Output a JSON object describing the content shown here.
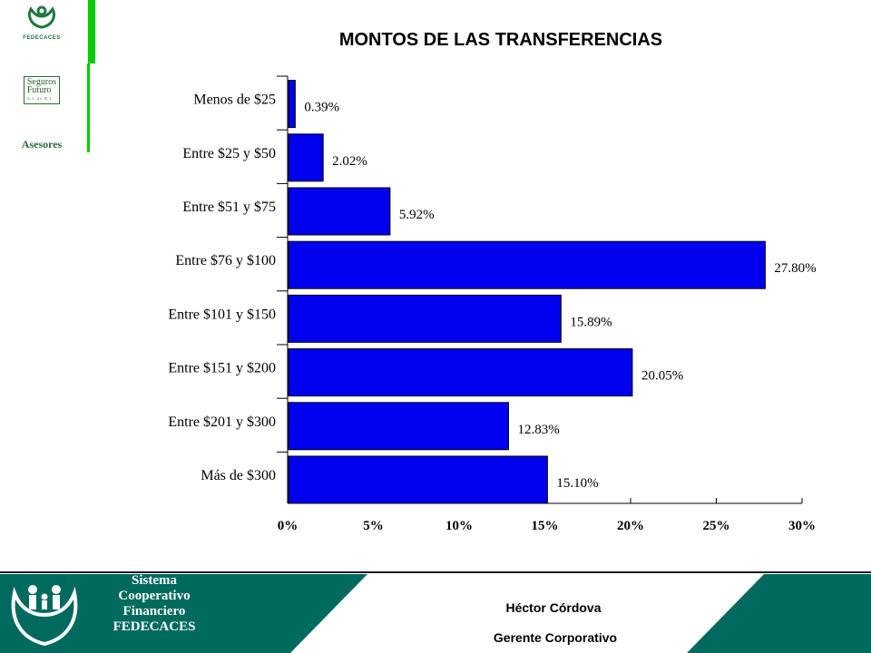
{
  "header": {
    "logo_fedecaces_text": "FEDECACES",
    "logo_seguros_line1": "Seguros",
    "logo_seguros_line2": "Futuro",
    "logo_seguros_sub": "A C de R L",
    "logo_asesores_text": "Asesores",
    "accent_green": "#00cc00"
  },
  "chart_data": {
    "type": "bar",
    "orientation": "horizontal",
    "title": "MONTOS DE LAS TRANSFERENCIAS",
    "categories": [
      "Menos de $25",
      "Entre $25 y $50",
      "Entre $51 y $75",
      "Entre $76 y $100",
      "Entre $101 y $150",
      "Entre $151 y $200",
      "Entre $201 y $300",
      "Más de $300"
    ],
    "values": [
      0.39,
      2.02,
      5.92,
      27.8,
      15.89,
      20.05,
      12.83,
      15.1
    ],
    "value_labels": [
      "0.39%",
      "2.02%",
      "5.92%",
      "27.80%",
      "15.89%",
      "20.05%",
      "12.83%",
      "15.10%"
    ],
    "xticks": [
      "0%",
      "5%",
      "10%",
      "15%",
      "20%",
      "25%",
      "30%"
    ],
    "xlim": [
      0,
      30
    ],
    "xlabel": "",
    "ylabel": "",
    "bar_color": "#0000ee",
    "grid": false,
    "legend": "none"
  },
  "footer": {
    "org_name": "Sistema Cooperativo Financiero FEDECACES",
    "person": "Héctor Córdova",
    "role": "Gerente Corporativo",
    "teal_color": "#006a5e"
  }
}
